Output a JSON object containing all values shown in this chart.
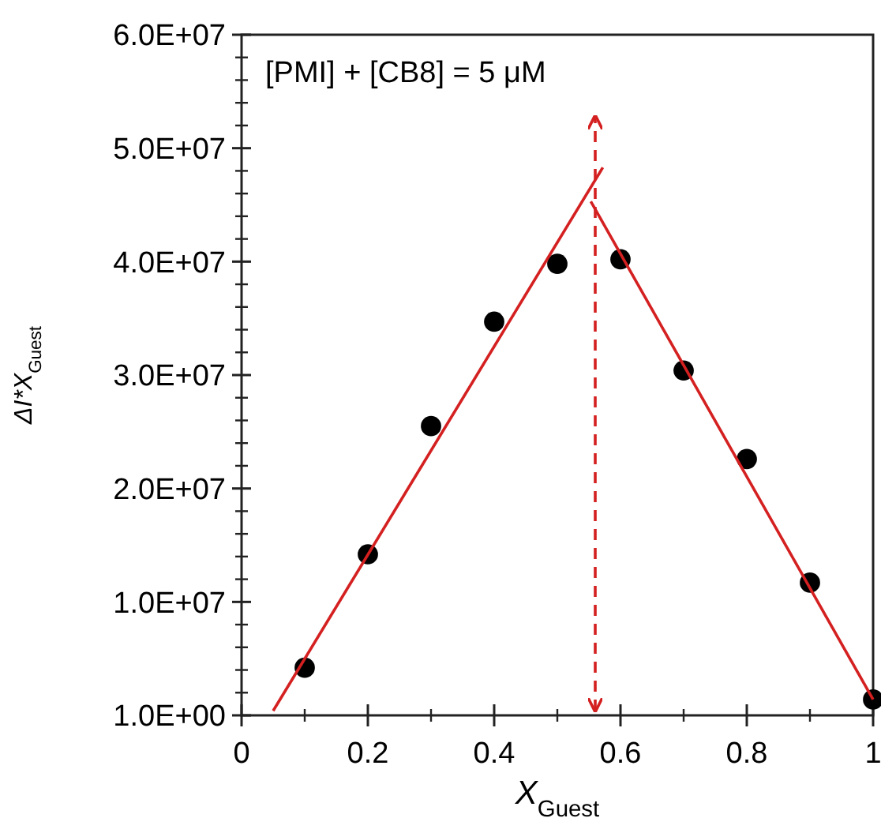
{
  "chart_data": {
    "type": "scatter",
    "xlabel": "X$_{Guest}$",
    "ylabel": "ΔI*X$_{Guest}$",
    "annotations": [
      "[PMI] + [CB8] = 5 μM"
    ],
    "xlim": [
      0,
      1
    ],
    "xticks": [
      0,
      0.2,
      0.4,
      0.6,
      0.8,
      1
    ],
    "ylim": [
      1,
      60000000
    ],
    "yticks": [
      {
        "value": 1,
        "label": "1.0E+00"
      },
      {
        "value": 10000000,
        "label": "1.0E+07"
      },
      {
        "value": 20000000,
        "label": "2.0E+07"
      },
      {
        "value": 30000000,
        "label": "3.0E+07"
      },
      {
        "value": 40000000,
        "label": "4.0E+07"
      },
      {
        "value": 50000000,
        "label": "5.0E+07"
      },
      {
        "value": 60000000,
        "label": "6.0E+07"
      }
    ],
    "grid": false,
    "series": [
      {
        "color": "#000000",
        "marker": "circle",
        "x": [
          0.1,
          0.2,
          0.3,
          0.4,
          0.5,
          0.6,
          0.7,
          0.8,
          0.9,
          1.0
        ],
        "values": [
          4200000,
          14200000,
          25500000,
          34700000,
          39800000,
          40200000,
          30400000,
          22600000,
          11700000,
          1400000
        ]
      },
      {
        "type": "line",
        "color": "#d42020",
        "line_style": "solid",
        "marker": "none",
        "x": [
          0.05,
          0.572
        ],
        "values": [
          400000,
          48300000
        ]
      },
      {
        "type": "line",
        "color": "#d42020",
        "line_style": "solid",
        "marker": "none",
        "x": [
          0.553,
          1.0
        ],
        "values": [
          45300000,
          1400000
        ]
      }
    ],
    "ref_lines": [
      {
        "axis": "x",
        "value": 0.56,
        "color": "#d42020",
        "line_style": "dashed"
      }
    ]
  }
}
